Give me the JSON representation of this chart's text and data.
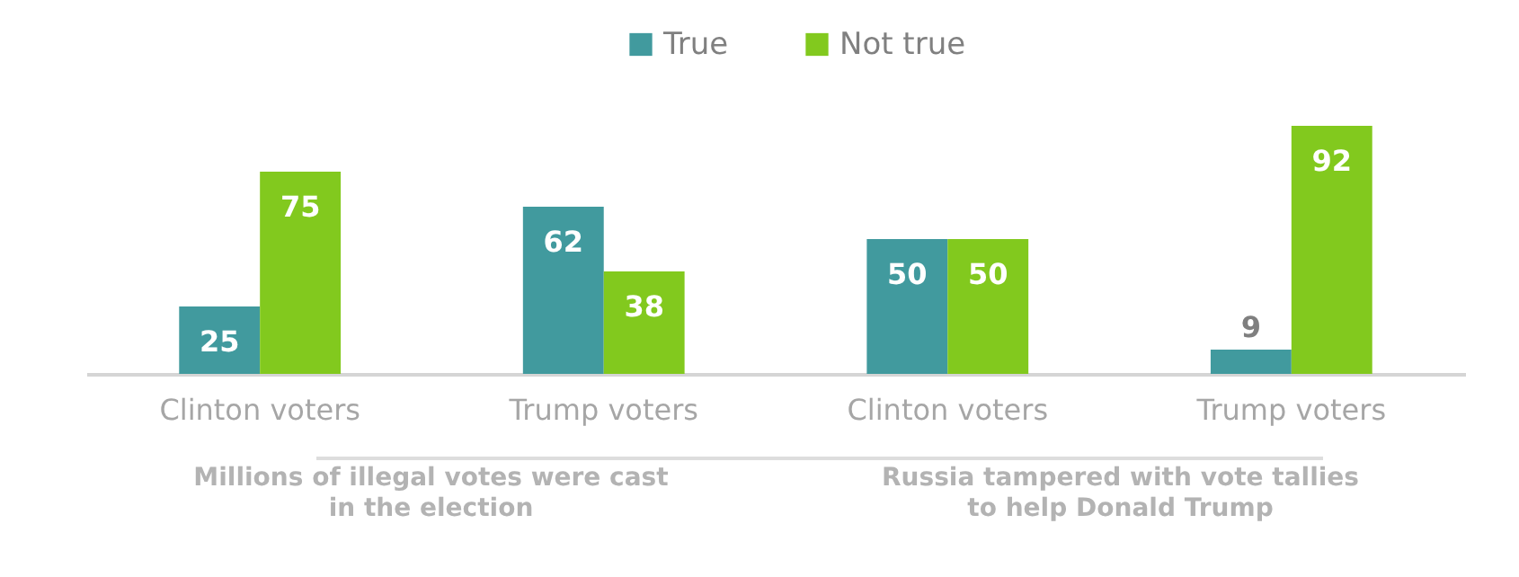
{
  "chart_data": {
    "type": "bar",
    "categories": [
      "Clinton voters",
      "Trump voters",
      "Clinton voters",
      "Trump voters"
    ],
    "series": [
      {
        "name": "True",
        "color": "#419a9e",
        "values": [
          25,
          62,
          50,
          9
        ]
      },
      {
        "name": "Not true",
        "color": "#82c91e",
        "values": [
          75,
          38,
          50,
          92
        ]
      }
    ],
    "data_labels": true,
    "legend": "top",
    "grid": false,
    "annotations": [
      "Millions of illegal votes were cast in the election",
      "Russia tampered with vote tallies to help Donald Trump"
    ]
  }
}
